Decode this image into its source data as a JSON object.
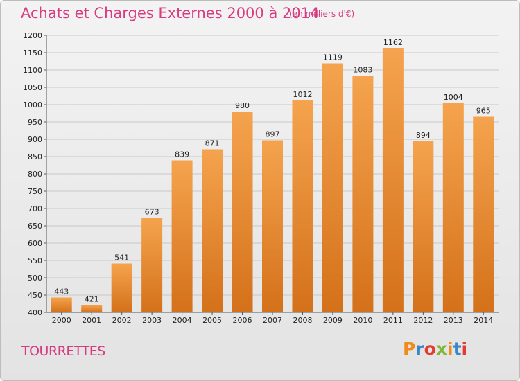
{
  "header": {
    "title": "Achats et Charges Externes 2000 à 2014",
    "subtitle": "(en milliers d'€)"
  },
  "footer": {
    "commune": "TOURRETTES",
    "logo_text": "Proxiti",
    "logo_colors": [
      "#f08a1c",
      "#3a87c8",
      "#e33b2e",
      "#7fb83a",
      "#f08a1c",
      "#3a87c8",
      "#e33b2e"
    ]
  },
  "chart_data": {
    "type": "bar",
    "categories": [
      "2000",
      "2001",
      "2002",
      "2003",
      "2004",
      "2005",
      "2006",
      "2007",
      "2008",
      "2009",
      "2010",
      "2011",
      "2012",
      "2013",
      "2014"
    ],
    "values": [
      443,
      421,
      541,
      673,
      839,
      871,
      980,
      897,
      1012,
      1119,
      1083,
      1162,
      894,
      1004,
      965
    ],
    "ylim": [
      400,
      1200
    ],
    "yticks": [
      400,
      450,
      500,
      550,
      600,
      650,
      700,
      750,
      800,
      850,
      900,
      950,
      1000,
      1050,
      1100,
      1150,
      1200
    ],
    "grid": true,
    "bar_color_top": "#f5a34e",
    "bar_color_bottom": "#d4711a",
    "grid_color": "#c8c8c8"
  }
}
